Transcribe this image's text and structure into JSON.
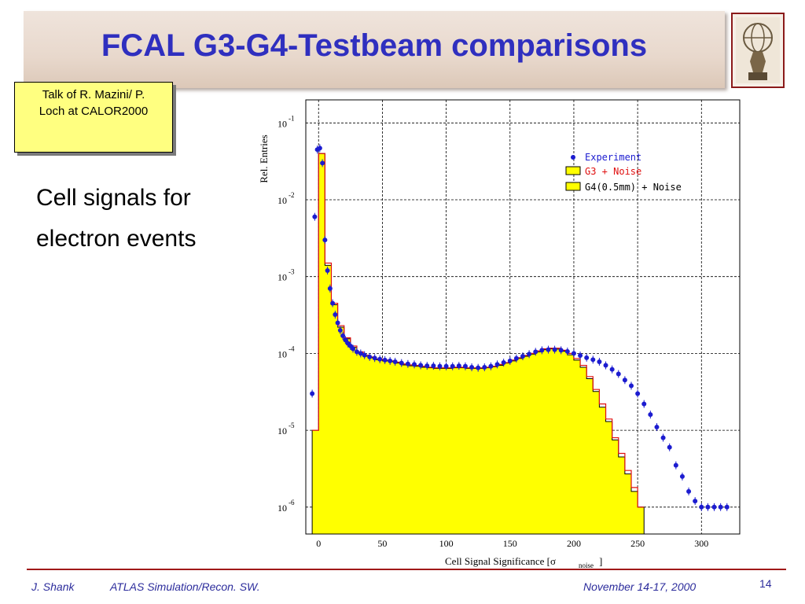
{
  "slide": {
    "title": "FCAL G3-G4-Testbeam comparisons",
    "note_line1": "Talk of R. Mazini/  P.",
    "note_line2": "Loch at CALOR2000",
    "bullet_line1": "Cell signals for",
    "bullet_line2": "electron events"
  },
  "footer": {
    "author": "J. Shank",
    "project": "ATLAS Simulation/Recon. SW.",
    "date": "November  14-17, 2000",
    "page": "14"
  },
  "chart_data": {
    "type": "histogram",
    "ylabel": "Rel. Entries",
    "xlabel_main": "Cell Signal Significance [σ",
    "xlabel_sub": "noise",
    "xlabel_end": "]",
    "xlim": [
      -10,
      330
    ],
    "ylim_log10": [
      -6.35,
      -0.7
    ],
    "y_scale": "log",
    "x_ticks": [
      0,
      50,
      100,
      150,
      200,
      250,
      300
    ],
    "x_tick_labels": [
      "0",
      "50",
      "100",
      "150",
      "200",
      "250",
      "300"
    ],
    "y_tick_exponents": [
      -1,
      -2,
      -3,
      -4,
      -5,
      -6
    ],
    "y_tick_base": "10",
    "grid": true,
    "legend_position": "top-right",
    "colors": {
      "experiment": "#1c1cd0",
      "g3": "#e01010",
      "g4_fill": "#ffff00",
      "grid": "#000000"
    },
    "series": [
      {
        "name": "Experiment",
        "style": "markers",
        "points": [
          [
            -5,
            3e-05
          ],
          [
            -3,
            0.006
          ],
          [
            -1,
            0.045
          ],
          [
            1,
            0.047
          ],
          [
            3,
            0.03
          ],
          [
            5,
            0.003
          ],
          [
            7,
            0.0012
          ],
          [
            9,
            0.0007
          ],
          [
            11,
            0.00045
          ],
          [
            13,
            0.00032
          ],
          [
            15,
            0.00025
          ],
          [
            17,
            0.0002
          ],
          [
            19,
            0.00017
          ],
          [
            21,
            0.00015
          ],
          [
            23,
            0.000135
          ],
          [
            25,
            0.000125
          ],
          [
            27,
            0.000115
          ],
          [
            30,
            0.000105
          ],
          [
            33,
            0.0001
          ],
          [
            36,
            9.5e-05
          ],
          [
            40,
            9e-05
          ],
          [
            44,
            8.7e-05
          ],
          [
            48,
            8.4e-05
          ],
          [
            52,
            8.2e-05
          ],
          [
            56,
            8e-05
          ],
          [
            60,
            7.8e-05
          ],
          [
            65,
            7.5e-05
          ],
          [
            70,
            7.3e-05
          ],
          [
            75,
            7.2e-05
          ],
          [
            80,
            7e-05
          ],
          [
            85,
            6.9e-05
          ],
          [
            90,
            6.9e-05
          ],
          [
            95,
            6.8e-05
          ],
          [
            100,
            6.8e-05
          ],
          [
            105,
            6.8e-05
          ],
          [
            110,
            6.9e-05
          ],
          [
            115,
            6.8e-05
          ],
          [
            120,
            6.6e-05
          ],
          [
            125,
            6.5e-05
          ],
          [
            130,
            6.6e-05
          ],
          [
            135,
            6.8e-05
          ],
          [
            140,
            7.2e-05
          ],
          [
            145,
            7.6e-05
          ],
          [
            150,
            8e-05
          ],
          [
            155,
            8.6e-05
          ],
          [
            160,
            9.2e-05
          ],
          [
            165,
            9.8e-05
          ],
          [
            170,
            0.000105
          ],
          [
            175,
            0.00011
          ],
          [
            180,
            0.000112
          ],
          [
            185,
            0.000112
          ],
          [
            190,
            0.00011
          ],
          [
            195,
            0.000106
          ],
          [
            200,
            0.0001
          ],
          [
            205,
            9.4e-05
          ],
          [
            210,
            8.8e-05
          ],
          [
            215,
            8.3e-05
          ],
          [
            220,
            7.8e-05
          ],
          [
            225,
            7e-05
          ],
          [
            230,
            6.2e-05
          ],
          [
            235,
            5.4e-05
          ],
          [
            240,
            4.5e-05
          ],
          [
            245,
            3.8e-05
          ],
          [
            250,
            3e-05
          ],
          [
            255,
            2.2e-05
          ],
          [
            260,
            1.6e-05
          ],
          [
            265,
            1.1e-05
          ],
          [
            270,
            8e-06
          ],
          [
            275,
            6e-06
          ],
          [
            280,
            3.5e-06
          ],
          [
            285,
            2.5e-06
          ],
          [
            290,
            1.6e-06
          ],
          [
            295,
            1.2e-06
          ],
          [
            300,
            1e-06
          ],
          [
            305,
            1e-06
          ],
          [
            310,
            1e-06
          ],
          [
            315,
            1e-06
          ],
          [
            320,
            1e-06
          ]
        ]
      },
      {
        "name": "G3 + Noise",
        "style": "step",
        "points": [
          [
            -5,
            1e-05
          ],
          [
            0,
            0.04
          ],
          [
            5,
            0.0015
          ],
          [
            10,
            0.00045
          ],
          [
            15,
            0.00023
          ],
          [
            20,
            0.00016
          ],
          [
            25,
            0.000125
          ],
          [
            30,
            0.000105
          ],
          [
            35,
            9.5e-05
          ],
          [
            40,
            9e-05
          ],
          [
            45,
            8.5e-05
          ],
          [
            50,
            8.2e-05
          ],
          [
            55,
            8e-05
          ],
          [
            60,
            7.7e-05
          ],
          [
            65,
            7.3e-05
          ],
          [
            70,
            7.1e-05
          ],
          [
            75,
            7e-05
          ],
          [
            80,
            6.8e-05
          ],
          [
            85,
            6.6e-05
          ],
          [
            90,
            6.5e-05
          ],
          [
            95,
            6.5e-05
          ],
          [
            100,
            6.5e-05
          ],
          [
            105,
            6.6e-05
          ],
          [
            110,
            6.6e-05
          ],
          [
            115,
            6.5e-05
          ],
          [
            120,
            6.5e-05
          ],
          [
            125,
            6.5e-05
          ],
          [
            130,
            6.6e-05
          ],
          [
            135,
            6.8e-05
          ],
          [
            140,
            7.2e-05
          ],
          [
            145,
            7.6e-05
          ],
          [
            150,
            8.2e-05
          ],
          [
            155,
            8.8e-05
          ],
          [
            160,
            9.4e-05
          ],
          [
            165,
            0.0001
          ],
          [
            170,
            0.000108
          ],
          [
            175,
            0.000115
          ],
          [
            180,
            0.000117
          ],
          [
            185,
            0.000117
          ],
          [
            190,
            0.00011
          ],
          [
            195,
            0.0001
          ],
          [
            200,
            8.6e-05
          ],
          [
            205,
            7e-05
          ],
          [
            210,
            5e-05
          ],
          [
            215,
            3.4e-05
          ],
          [
            220,
            2.2e-05
          ],
          [
            225,
            1.4e-05
          ],
          [
            230,
            8e-06
          ],
          [
            235,
            5e-06
          ],
          [
            240,
            3e-06
          ],
          [
            245,
            1.8e-06
          ],
          [
            250,
            1e-06
          ]
        ]
      },
      {
        "name": "G4(0.5mm) + Noise",
        "style": "step-filled",
        "points": [
          [
            -5,
            1e-05
          ],
          [
            0,
            0.04
          ],
          [
            5,
            0.0014
          ],
          [
            10,
            0.00043
          ],
          [
            15,
            0.00022
          ],
          [
            20,
            0.000155
          ],
          [
            25,
            0.00012
          ],
          [
            30,
            0.000102
          ],
          [
            35,
            9.2e-05
          ],
          [
            40,
            8.8e-05
          ],
          [
            45,
            8.3e-05
          ],
          [
            50,
            8e-05
          ],
          [
            55,
            7.8e-05
          ],
          [
            60,
            7.5e-05
          ],
          [
            65,
            7.1e-05
          ],
          [
            70,
            6.9e-05
          ],
          [
            75,
            6.8e-05
          ],
          [
            80,
            6.6e-05
          ],
          [
            85,
            6.5e-05
          ],
          [
            90,
            6.4e-05
          ],
          [
            95,
            6.4e-05
          ],
          [
            100,
            6.4e-05
          ],
          [
            105,
            6.5e-05
          ],
          [
            110,
            6.5e-05
          ],
          [
            115,
            6.4e-05
          ],
          [
            120,
            6.4e-05
          ],
          [
            125,
            6.4e-05
          ],
          [
            130,
            6.5e-05
          ],
          [
            135,
            6.7e-05
          ],
          [
            140,
            7e-05
          ],
          [
            145,
            7.5e-05
          ],
          [
            150,
            8e-05
          ],
          [
            155,
            8.6e-05
          ],
          [
            160,
            9.2e-05
          ],
          [
            165,
            9.8e-05
          ],
          [
            170,
            0.000105
          ],
          [
            175,
            0.000112
          ],
          [
            180,
            0.000115
          ],
          [
            185,
            0.000114
          ],
          [
            190,
            0.000107
          ],
          [
            195,
            9.6e-05
          ],
          [
            200,
            8.2e-05
          ],
          [
            205,
            6.6e-05
          ],
          [
            210,
            4.7e-05
          ],
          [
            215,
            3.2e-05
          ],
          [
            220,
            2e-05
          ],
          [
            225,
            1.3e-05
          ],
          [
            230,
            7.5e-06
          ],
          [
            235,
            4.5e-06
          ],
          [
            240,
            2.7e-06
          ],
          [
            245,
            1.6e-06
          ],
          [
            250,
            1e-06
          ]
        ]
      }
    ]
  }
}
